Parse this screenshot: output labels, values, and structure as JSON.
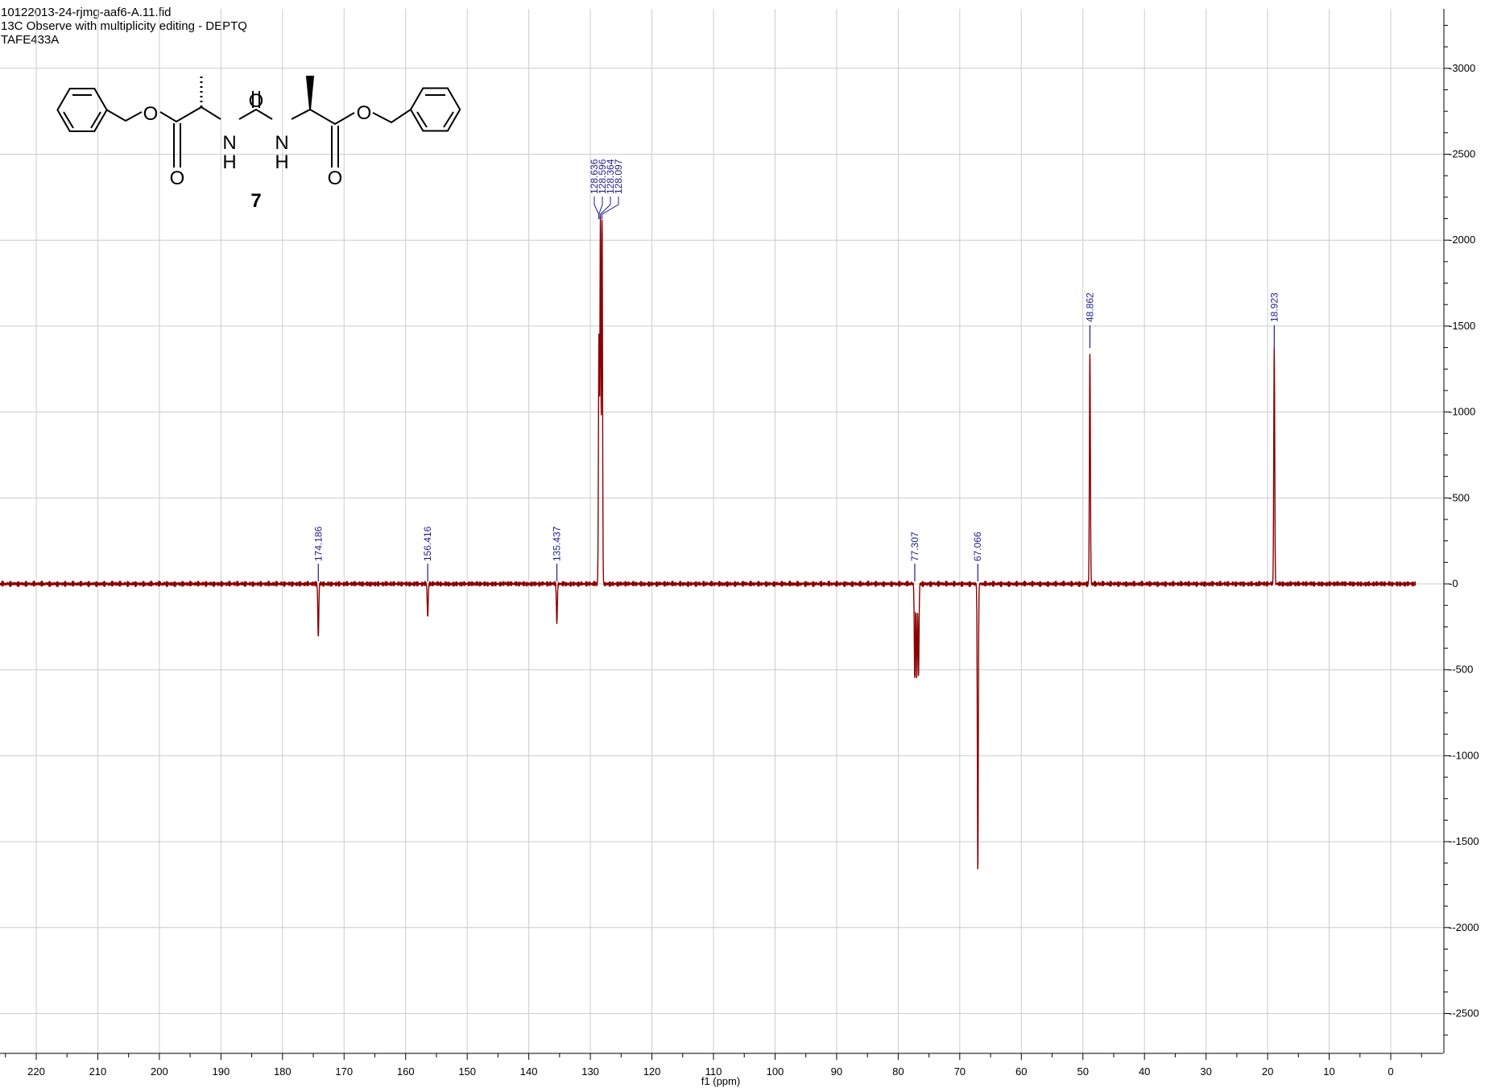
{
  "header": {
    "filename": "10122013-24-rjmg-aaf6-A.11.fid",
    "experiment": "13C Observe with multiplicity editing - DEPTQ",
    "sample": "TAFE433A"
  },
  "structure": {
    "compound_label": "7",
    "atoms": {
      "o_ether_left": "O",
      "o_carbonyl_left": "O",
      "n_left": "N",
      "h_left": "H",
      "o_urea": "O",
      "n_right": "N",
      "h_right": "H",
      "o_carbonyl_right": "O",
      "o_ether_right": "O"
    }
  },
  "chart_data": {
    "type": "line",
    "title": "",
    "xlabel": "f1 (ppm)",
    "ylabel": "",
    "x_reversed": true,
    "xlim": [
      231,
      -4
    ],
    "ylim": [
      -2700,
      3300
    ],
    "x_ticks": [
      220,
      210,
      200,
      190,
      180,
      170,
      160,
      150,
      140,
      130,
      120,
      110,
      100,
      90,
      80,
      70,
      60,
      50,
      40,
      30,
      20,
      10,
      0
    ],
    "y_ticks": [
      3000,
      2500,
      2000,
      1500,
      1000,
      500,
      0,
      -500,
      -1000,
      -1500,
      -2000,
      -2500
    ],
    "grid": true,
    "line_color": "#8b0000",
    "label_color": "#1c1c8c",
    "peaks": [
      {
        "ppm": 174.186,
        "intensity": -310,
        "label": "174.186"
      },
      {
        "ppm": 156.416,
        "intensity": -190,
        "label": "156.416"
      },
      {
        "ppm": 135.437,
        "intensity": -230,
        "label": "135.437"
      },
      {
        "ppm": 128.636,
        "intensity": 280,
        "label": "128.636"
      },
      {
        "ppm": 128.596,
        "intensity": 1200,
        "label": "128.596"
      },
      {
        "ppm": 128.364,
        "intensity": 2130,
        "label": "128.364"
      },
      {
        "ppm": 128.097,
        "intensity": 2130,
        "label": "128.097"
      },
      {
        "ppm": 77.307,
        "intensity": -560,
        "label": "77.307"
      },
      {
        "ppm": 77.0,
        "intensity": -550,
        "label": ""
      },
      {
        "ppm": 76.7,
        "intensity": -540,
        "label": ""
      },
      {
        "ppm": 67.066,
        "intensity": -1670,
        "label": "67.066"
      },
      {
        "ppm": 48.862,
        "intensity": 1350,
        "label": "48.862"
      },
      {
        "ppm": 18.923,
        "intensity": 1370,
        "label": "18.923"
      }
    ]
  }
}
